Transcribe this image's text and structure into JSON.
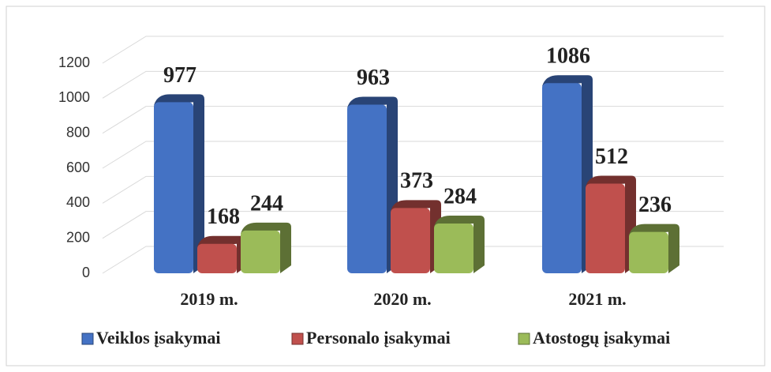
{
  "chart_data": {
    "type": "bar",
    "categories": [
      "2019 m.",
      "2020 m.",
      "2021 m."
    ],
    "series": [
      {
        "name": "Veiklos įsakymai",
        "color": "#4472c4",
        "values": [
          977,
          963,
          1086
        ]
      },
      {
        "name": "Personalo įsakymai",
        "color": "#c0504d",
        "values": [
          168,
          373,
          512
        ]
      },
      {
        "name": "Atostogų įsakymai",
        "color": "#9bbb59",
        "values": [
          244,
          284,
          236
        ]
      }
    ],
    "ylim": [
      0,
      1200
    ],
    "yticks": [
      0,
      200,
      400,
      600,
      800,
      1000,
      1200
    ],
    "grid": true,
    "legend": "bottom"
  }
}
